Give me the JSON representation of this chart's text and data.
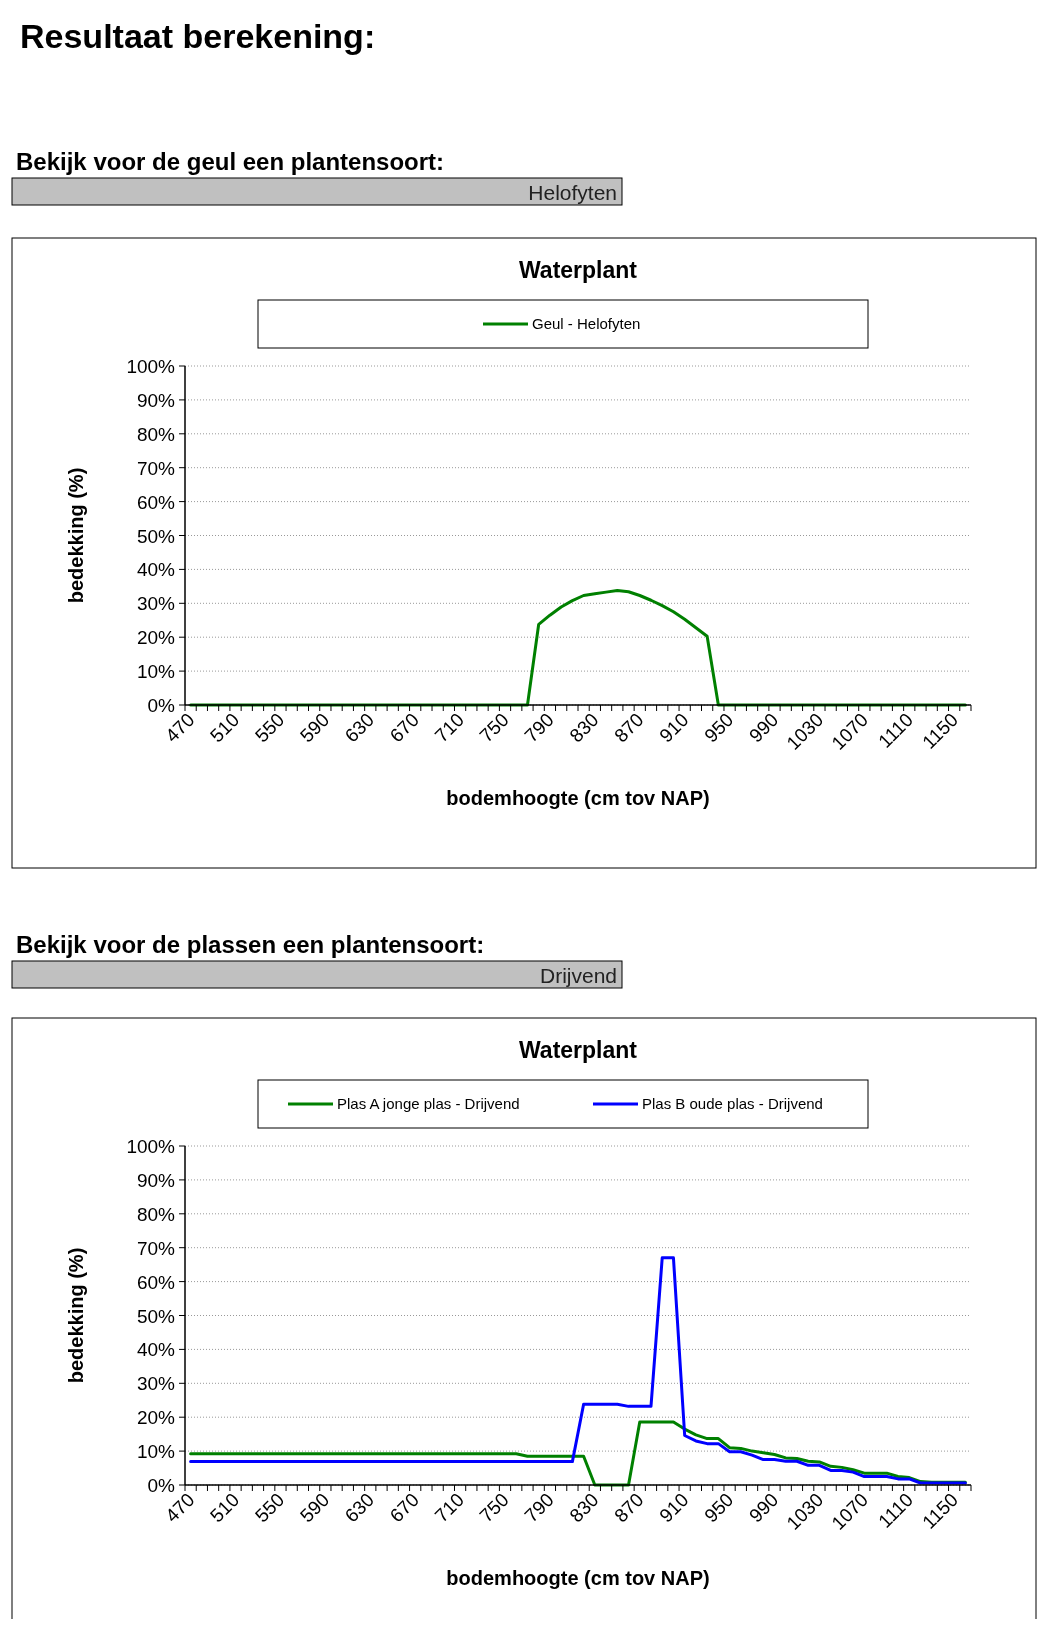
{
  "chart_data": [
    {
      "type": "line",
      "title": "Waterplant",
      "xlabel": "bodemhoogte (cm tov NAP)",
      "ylabel": "bedekking (%)",
      "annotations": [
        "Resultaat berekening:",
        "Bekijk voor de geul een plantensoort:",
        "Helofyten"
      ],
      "categories": [
        "470",
        null,
        null,
        null,
        "510",
        null,
        null,
        null,
        "550",
        null,
        null,
        null,
        "590",
        null,
        null,
        null,
        "630",
        null,
        null,
        null,
        "670",
        null,
        null,
        null,
        "710",
        null,
        null,
        null,
        "750",
        null,
        null,
        null,
        "790",
        null,
        null,
        null,
        "830",
        null,
        null,
        null,
        "870",
        null,
        null,
        null,
        "910",
        null,
        null,
        null,
        "950",
        null,
        null,
        null,
        "990",
        null,
        null,
        null,
        "1030",
        null,
        null,
        null,
        "1070",
        null,
        null,
        null,
        "1110",
        null,
        null,
        null,
        "1150",
        null
      ],
      "series": [
        {
          "name": "Geul - Helofyten",
          "color": "#008000",
          "values": [
            0,
            0,
            0,
            0,
            0,
            0,
            0,
            0,
            0,
            0,
            0,
            0,
            0,
            0,
            0,
            0,
            0,
            0,
            0,
            0,
            0,
            0,
            0,
            0,
            0,
            0,
            0,
            0,
            0,
            0,
            0,
            23.8,
            26.5,
            28.9,
            30.8,
            32.3,
            32.8,
            33.3,
            33.8,
            33.4,
            32.3,
            30.9,
            29.3,
            27.5,
            25.3,
            22.8,
            20.3,
            0,
            0,
            0,
            0,
            0,
            0,
            0,
            0,
            0,
            0,
            0,
            0,
            0,
            0,
            0,
            0,
            0,
            0,
            0,
            0,
            0,
            0,
            0
          ]
        }
      ],
      "ylim": [
        0,
        100
      ],
      "yticks": [
        {
          "value": 0,
          "label": "0%"
        },
        {
          "value": 10,
          "label": "10%"
        },
        {
          "value": 20,
          "label": "20%"
        },
        {
          "value": 30,
          "label": "30%"
        },
        {
          "value": 40,
          "label": "40%"
        },
        {
          "value": 50,
          "label": "50%"
        },
        {
          "value": 60,
          "label": "60%"
        },
        {
          "value": 70,
          "label": "70%"
        },
        {
          "value": 80,
          "label": "80%"
        },
        {
          "value": 90,
          "label": "90%"
        },
        {
          "value": 100,
          "label": "100%"
        }
      ],
      "grid": "y",
      "legend": "top",
      "marker": "none",
      "line_style": "solid"
    },
    {
      "type": "line",
      "title": "Waterplant",
      "xlabel": "bodemhoogte (cm tov NAP)",
      "ylabel": "bedekking (%)",
      "annotations": [
        "Bekijk voor de plassen een plantensoort:",
        "Drijvend"
      ],
      "categories": [
        "470",
        null,
        null,
        null,
        "510",
        null,
        null,
        null,
        "550",
        null,
        null,
        null,
        "590",
        null,
        null,
        null,
        "630",
        null,
        null,
        null,
        "670",
        null,
        null,
        null,
        "710",
        null,
        null,
        null,
        "750",
        null,
        null,
        null,
        "790",
        null,
        null,
        null,
        "830",
        null,
        null,
        null,
        "870",
        null,
        null,
        null,
        "910",
        null,
        null,
        null,
        "950",
        null,
        null,
        null,
        "990",
        null,
        null,
        null,
        "1030",
        null,
        null,
        null,
        "1070",
        null,
        null,
        null,
        "1110",
        null,
        null,
        null,
        "1150",
        null
      ],
      "series": [
        {
          "name": "Plas A jonge plas - Drijvend",
          "color": "#008000",
          "values": [
            9.2,
            9.2,
            9.2,
            9.2,
            9.2,
            9.2,
            9.2,
            9.2,
            9.2,
            9.2,
            9.2,
            9.2,
            9.2,
            9.2,
            9.2,
            9.2,
            9.2,
            9.2,
            9.2,
            9.2,
            9.2,
            9.2,
            9.2,
            9.2,
            9.2,
            9.2,
            9.2,
            9.2,
            9.2,
            9.2,
            8.5,
            8.5,
            8.5,
            8.5,
            8.5,
            8.5,
            0,
            0,
            0,
            0,
            18.6,
            18.6,
            18.6,
            18.6,
            16.5,
            14.8,
            13.7,
            13.7,
            11,
            10.8,
            10,
            9.5,
            9,
            8,
            7.8,
            7,
            6.8,
            5.5,
            5.2,
            4.5,
            3.5,
            3.5,
            3.5,
            2.5,
            2.2,
            1,
            0.8,
            0.8,
            0.8,
            0.8
          ]
        },
        {
          "name": "Plas B oude plas - Drijvend",
          "color": "#0000ff",
          "values": [
            6.9,
            6.9,
            6.9,
            6.9,
            6.9,
            6.9,
            6.9,
            6.9,
            6.9,
            6.9,
            6.9,
            6.9,
            6.9,
            6.9,
            6.9,
            6.9,
            6.9,
            6.9,
            6.9,
            6.9,
            6.9,
            6.9,
            6.9,
            6.9,
            6.9,
            6.9,
            6.9,
            6.9,
            6.9,
            6.9,
            6.9,
            6.9,
            6.9,
            6.9,
            6.9,
            23.8,
            23.8,
            23.8,
            23.8,
            23.2,
            23.2,
            23.2,
            67,
            67,
            14.6,
            13,
            12.2,
            12.2,
            9.8,
            9.8,
            8.8,
            7.5,
            7.5,
            7,
            7,
            5.8,
            5.8,
            4.3,
            4.3,
            3.8,
            2.5,
            2.5,
            2.5,
            1.8,
            1.8,
            0.6,
            0.6,
            0.6,
            0.6,
            0.6
          ]
        }
      ],
      "ylim": [
        0,
        100
      ],
      "yticks": [
        {
          "value": 0,
          "label": "0%"
        },
        {
          "value": 10,
          "label": "10%"
        },
        {
          "value": 20,
          "label": "20%"
        },
        {
          "value": 30,
          "label": "30%"
        },
        {
          "value": 40,
          "label": "40%"
        },
        {
          "value": 50,
          "label": "50%"
        },
        {
          "value": 60,
          "label": "60%"
        },
        {
          "value": 70,
          "label": "70%"
        },
        {
          "value": 80,
          "label": "80%"
        },
        {
          "value": 90,
          "label": "90%"
        },
        {
          "value": 100,
          "label": "100%"
        }
      ],
      "grid": "y",
      "legend": "top",
      "marker": "none",
      "line_style": "solid"
    }
  ]
}
